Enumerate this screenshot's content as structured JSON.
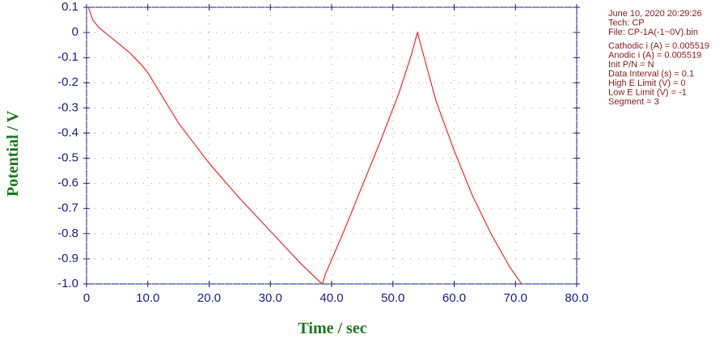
{
  "chart_data": {
    "type": "line",
    "xlabel": "Time / sec",
    "ylabel": "Potential / V",
    "xlim": [
      0,
      80
    ],
    "ylim": [
      -1,
      0.1
    ],
    "xticks": [
      0,
      {
        "value": 10,
        "label": "10.0"
      },
      {
        "value": 20,
        "label": "20.0"
      },
      {
        "value": 30,
        "label": "30.0"
      },
      {
        "value": 40,
        "label": "40.0"
      },
      {
        "value": 50,
        "label": "50.0"
      },
      {
        "value": 60,
        "label": "60.0"
      },
      {
        "value": 70,
        "label": "70.0"
      },
      {
        "value": 80,
        "label": "80.0"
      }
    ],
    "yticks": [
      0.1,
      0,
      -0.1,
      -0.2,
      -0.3,
      -0.4,
      -0.5,
      -0.6,
      -0.7,
      -0.8,
      -0.9,
      {
        "value": -1,
        "label": "-1.0"
      }
    ],
    "grid": true,
    "series": [
      {
        "color": "#ff0000",
        "x": [
          0.3,
          1,
          2,
          3,
          5,
          7,
          9,
          10,
          11,
          12,
          15,
          20,
          25,
          30,
          35,
          38,
          38.5,
          39,
          42,
          45,
          48,
          51,
          53,
          54,
          55,
          57,
          60,
          63,
          66,
          69,
          71
        ],
        "values": [
          0.1,
          0.05,
          0.02,
          0.0,
          -0.04,
          -0.08,
          -0.13,
          -0.16,
          -0.2,
          -0.24,
          -0.36,
          -0.52,
          -0.66,
          -0.79,
          -0.92,
          -0.99,
          -1.0,
          -0.96,
          -0.79,
          -0.61,
          -0.43,
          -0.24,
          -0.09,
          0.0,
          -0.09,
          -0.27,
          -0.47,
          -0.65,
          -0.8,
          -0.93,
          -1.0
        ]
      }
    ],
    "annotations": [
      "June 10, 2020   20:29:26",
      "Tech: CP",
      "File: CP-1A(-1~0V).bin",
      "Cathodic i (A) = 0.005519",
      "Anodic i (A) = 0.005519",
      "Init P/N = N",
      "Data Interval (s) = 0.1",
      "High E Limit (V) = 0",
      "Low E Limit (V) = -1",
      "Segment = 3"
    ]
  }
}
